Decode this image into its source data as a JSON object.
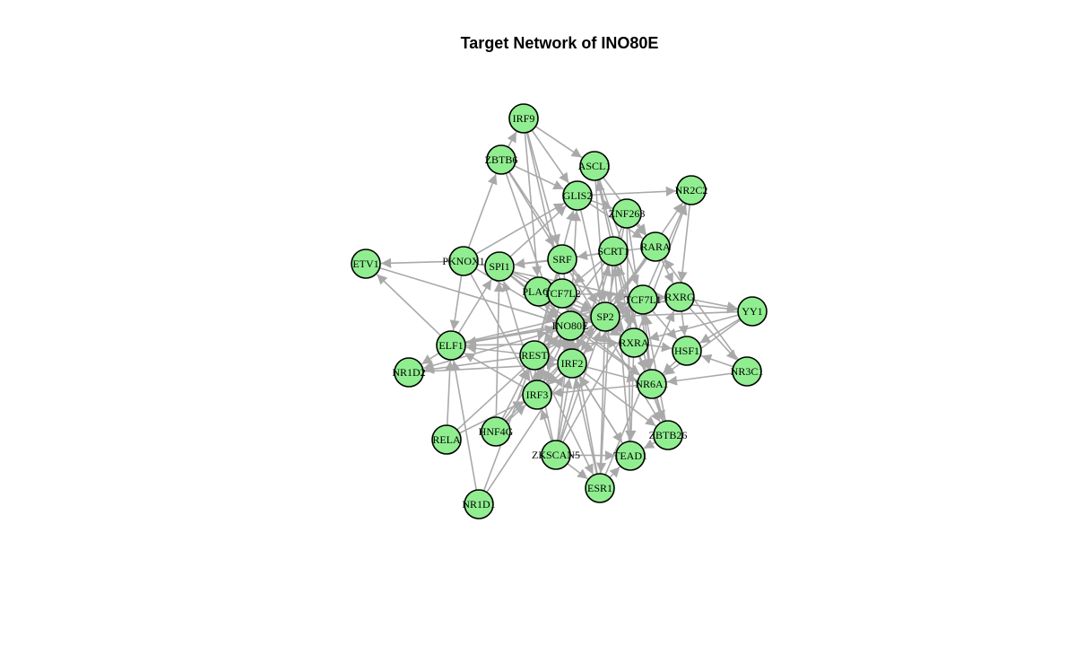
{
  "title": "Target Network of INO80E",
  "colors": {
    "node_fill": "#90ee90",
    "node_stroke": "#000000",
    "edge": "#a9a9a9",
    "background": "#ffffff"
  },
  "network": {
    "center": "INO80E",
    "nodes": [
      "IRF9",
      "ZBTB6",
      "ASCL1",
      "NR2C2",
      "GLIS2",
      "ZNF263",
      "RARA",
      "SCRT1",
      "SRF",
      "PKNOX1",
      "SPI1",
      "ETV1",
      "PLAG1",
      "TCF7L2",
      "TCF7L1",
      "RXRG",
      "YY1",
      "SP2",
      "INO80E",
      "ELF1",
      "RXRA",
      "HSF1",
      "NR1D2",
      "REST",
      "IRF2",
      "NR3C1",
      "NR6A1",
      "IRF3",
      "RELA",
      "HNF4G",
      "ZBTB26",
      "ZKSCAN5",
      "TEAD1",
      "ESR1",
      "NR1D1"
    ],
    "edges": [
      [
        "IRF9",
        "ASCL1"
      ],
      [
        "IRF9",
        "GLIS2"
      ],
      [
        "IRF9",
        "SRF"
      ],
      [
        "IRF9",
        "INO80E"
      ],
      [
        "IRF9",
        "PLAG1"
      ],
      [
        "ZBTB6",
        "IRF9"
      ],
      [
        "ZBTB6",
        "GLIS2"
      ],
      [
        "ZBTB6",
        "SRF"
      ],
      [
        "ZBTB6",
        "IRF2"
      ],
      [
        "ZBTB6",
        "SP2"
      ],
      [
        "PKNOX1",
        "ZBTB6"
      ],
      [
        "ASCL1",
        "RARA"
      ],
      [
        "ASCL1",
        "TCF7L1"
      ],
      [
        "ASCL1",
        "NR6A1"
      ],
      [
        "ASCL1",
        "SP2"
      ],
      [
        "SCRT1",
        "ASCL1"
      ],
      [
        "GLIS2",
        "NR2C2"
      ],
      [
        "GLIS2",
        "RARA"
      ],
      [
        "GLIS2",
        "SP2"
      ],
      [
        "PKNOX1",
        "GLIS2"
      ],
      [
        "SPI1",
        "GLIS2"
      ],
      [
        "INO80E",
        "GLIS2"
      ],
      [
        "REST",
        "GLIS2"
      ],
      [
        "SP2",
        "NR2C2"
      ],
      [
        "TCF7L1",
        "NR2C2"
      ],
      [
        "RXRA",
        "NR2C2"
      ],
      [
        "NR2C2",
        "RXRG"
      ],
      [
        "ZNF263",
        "RARA"
      ],
      [
        "ZNF263",
        "SP2"
      ],
      [
        "ZNF263",
        "TEAD1"
      ],
      [
        "ZNF263",
        "IRF2"
      ],
      [
        "ZNF263",
        "NR6A1"
      ],
      [
        "GLIS2",
        "ZNF263"
      ],
      [
        "RARA",
        "RXRG"
      ],
      [
        "RARA",
        "SP2"
      ],
      [
        "RARA",
        "IRF3"
      ],
      [
        "RARA",
        "SPI1"
      ],
      [
        "SCRT1",
        "SRF"
      ],
      [
        "SCRT1",
        "TCF7L2"
      ],
      [
        "SCRT1",
        "IRF2"
      ],
      [
        "SCRT1",
        "ESR1"
      ],
      [
        "SCRT1",
        "RXRA"
      ],
      [
        "SCRT1",
        "REST"
      ],
      [
        "SRF",
        "SPI1"
      ],
      [
        "SRF",
        "INO80E"
      ],
      [
        "SRF",
        "ZBTB26"
      ],
      [
        "SRF",
        "RXRA"
      ],
      [
        "SRF",
        "REST"
      ],
      [
        "PKNOX1",
        "ETV1"
      ],
      [
        "PKNOX1",
        "ELF1"
      ],
      [
        "PKNOX1",
        "INO80E"
      ],
      [
        "PKNOX1",
        "TCF7L1"
      ],
      [
        "PKNOX1",
        "IRF3"
      ],
      [
        "ELF1",
        "ETV1"
      ],
      [
        "ELF1",
        "SPI1"
      ],
      [
        "ELF1",
        "INO80E"
      ],
      [
        "ELF1",
        "SP2"
      ],
      [
        "ELF1",
        "TCF7L1"
      ],
      [
        "ELF1",
        "RXRA"
      ],
      [
        "ELF1",
        "NR1D2"
      ],
      [
        "SPI1",
        "INO80E"
      ],
      [
        "SPI1",
        "TCF7L2"
      ],
      [
        "SPI1",
        "RXRA"
      ],
      [
        "SPI1",
        "NR6A1"
      ],
      [
        "PLAG1",
        "SP2"
      ],
      [
        "PLAG1",
        "RXRA"
      ],
      [
        "PLAG1",
        "IRF2"
      ],
      [
        "TCF7L2",
        "SP2"
      ],
      [
        "TCF7L2",
        "RXRG"
      ],
      [
        "TCF7L2",
        "IRF3"
      ],
      [
        "TCF7L1",
        "RXRG"
      ],
      [
        "TCF7L1",
        "YY1"
      ],
      [
        "TCF7L1",
        "HSF1"
      ],
      [
        "TCF7L1",
        "IRF2"
      ],
      [
        "RXRG",
        "YY1"
      ],
      [
        "RXRG",
        "HSF1"
      ],
      [
        "RXRG",
        "NR3C1"
      ],
      [
        "RXRG",
        "SP2"
      ],
      [
        "YY1",
        "HSF1"
      ],
      [
        "YY1",
        "NR6A1"
      ],
      [
        "YY1",
        "SP2"
      ],
      [
        "YY1",
        "RXRA"
      ],
      [
        "SP2",
        "INO80E"
      ],
      [
        "SP2",
        "IRF2"
      ],
      [
        "SP2",
        "RXRA"
      ],
      [
        "SP2",
        "NR1D2"
      ],
      [
        "INO80E",
        "ELF1"
      ],
      [
        "INO80E",
        "REST"
      ],
      [
        "INO80E",
        "IRF2"
      ],
      [
        "INO80E",
        "IRF3"
      ],
      [
        "INO80E",
        "NR6A1"
      ],
      [
        "RXRA",
        "HSF1"
      ],
      [
        "RXRA",
        "NR6A1"
      ],
      [
        "RXRA",
        "ZBTB26"
      ],
      [
        "RXRA",
        "TEAD1"
      ],
      [
        "HSF1",
        "NR6A1"
      ],
      [
        "NR3C1",
        "HSF1"
      ],
      [
        "NR3C1",
        "NR6A1"
      ],
      [
        "NR3C1",
        "RARA"
      ],
      [
        "NR1D2",
        "IRF2"
      ],
      [
        "REST",
        "ELF1"
      ],
      [
        "REST",
        "NR1D2"
      ],
      [
        "REST",
        "IRF2"
      ],
      [
        "REST",
        "ESR1"
      ],
      [
        "REST",
        "TCF7L1"
      ],
      [
        "IRF2",
        "IRF3"
      ],
      [
        "IRF2",
        "NR6A1"
      ],
      [
        "IRF2",
        "ZBTB26"
      ],
      [
        "IRF2",
        "TEAD1"
      ],
      [
        "NR6A1",
        "IRF3"
      ],
      [
        "NR6A1",
        "ZBTB26"
      ],
      [
        "NR6A1",
        "TCF7L1"
      ],
      [
        "IRF3",
        "SPI1"
      ],
      [
        "IRF3",
        "REST"
      ],
      [
        "IRF3",
        "ELF1"
      ],
      [
        "RELA",
        "ELF1"
      ],
      [
        "RELA",
        "IRF3"
      ],
      [
        "RELA",
        "INO80E"
      ],
      [
        "HNF4G",
        "SPI1"
      ],
      [
        "HNF4G",
        "IRF3"
      ],
      [
        "HNF4G",
        "REST"
      ],
      [
        "HNF4G",
        "INO80E"
      ],
      [
        "HNF4G",
        "SP2"
      ],
      [
        "ZBTB26",
        "TCF7L1"
      ],
      [
        "ZBTB26",
        "SCRT1"
      ],
      [
        "ZBTB26",
        "TEAD1"
      ],
      [
        "ZKSCAN5",
        "TEAD1"
      ],
      [
        "ZKSCAN5",
        "ESR1"
      ],
      [
        "ZKSCAN5",
        "IRF3"
      ],
      [
        "ZKSCAN5",
        "IRF2"
      ],
      [
        "ZKSCAN5",
        "REST"
      ],
      [
        "ZKSCAN5",
        "INO80E"
      ],
      [
        "ZKSCAN5",
        "SP2"
      ],
      [
        "ZKSCAN5",
        "TCF7L1"
      ],
      [
        "ZKSCAN5",
        "SCRT1"
      ],
      [
        "ESR1",
        "TEAD1"
      ],
      [
        "ESR1",
        "IRF2"
      ],
      [
        "ESR1",
        "SP2"
      ],
      [
        "ESR1",
        "RXRG"
      ],
      [
        "ESR1",
        "INO80E"
      ],
      [
        "TEAD1",
        "IRF2"
      ],
      [
        "TEAD1",
        "SCRT1"
      ],
      [
        "NR1D1",
        "ELF1"
      ],
      [
        "NR1D1",
        "REST"
      ],
      [
        "NR1D1",
        "IRF2"
      ],
      [
        "ETV1",
        "INO80E"
      ]
    ]
  }
}
